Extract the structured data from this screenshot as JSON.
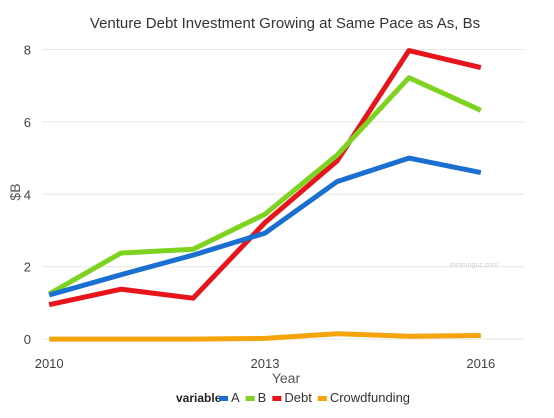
{
  "chart_data": {
    "type": "line",
    "title": "Venture Debt Investment Growing at Same Pace as As, Bs",
    "xlabel": "Year",
    "ylabel": "$B",
    "x": [
      2010,
      2011,
      2012,
      2013,
      2014,
      2015,
      2016
    ],
    "xticks": [
      "2010",
      "2013",
      "2016"
    ],
    "yticks": [
      "0",
      "2",
      "4",
      "6",
      "8"
    ],
    "xlim": [
      2009.9,
      2016.6
    ],
    "ylim": [
      -0.3,
      8.4
    ],
    "grid": "horizontal",
    "legend_title": "variable",
    "legend_position": "bottom",
    "series": [
      {
        "name": "A",
        "color": "#1a6fd1",
        "values": [
          1.22,
          1.78,
          2.32,
          2.93,
          4.35,
          5.0,
          4.6
        ]
      },
      {
        "name": "B",
        "color": "#7ed321",
        "values": [
          1.25,
          2.38,
          2.48,
          3.45,
          5.08,
          7.22,
          6.32
        ]
      },
      {
        "name": "Debt",
        "color": "#e8141b",
        "values": [
          0.95,
          1.38,
          1.13,
          3.22,
          4.92,
          7.97,
          7.5
        ]
      },
      {
        "name": "Crowdfunding",
        "color": "#f5a40c",
        "values": [
          0.0,
          0.0,
          0.0,
          0.02,
          0.15,
          0.08,
          0.1
        ]
      }
    ],
    "watermark": "tomtunguz.com"
  }
}
